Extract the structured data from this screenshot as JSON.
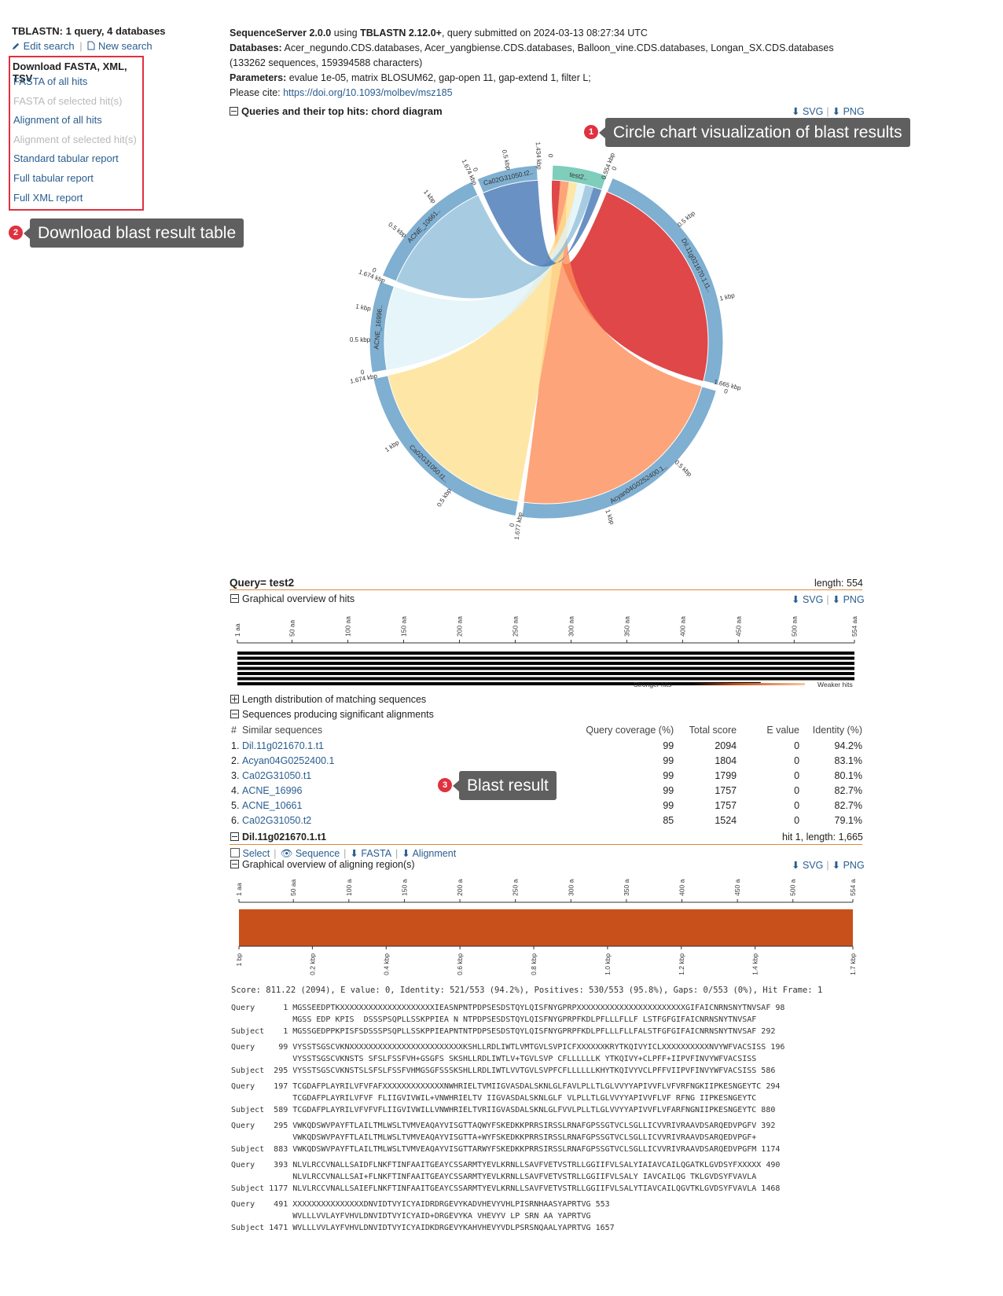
{
  "sidebar": {
    "title": "TBLASTN: 1 query, 4 databases",
    "edit_search": "Edit search",
    "new_search": "New search",
    "download_header": "Download FASTA, XML, TSV",
    "downloads": [
      {
        "label": "FASTA of all hits",
        "enabled": true
      },
      {
        "label": "FASTA of selected hit(s)",
        "enabled": false
      },
      {
        "label": "Alignment of all hits",
        "enabled": true
      },
      {
        "label": "Alignment of selected hit(s)",
        "enabled": false
      },
      {
        "label": "Standard tabular report",
        "enabled": true
      },
      {
        "label": "Full tabular report",
        "enabled": true
      },
      {
        "label": "Full XML report",
        "enabled": true
      }
    ]
  },
  "callouts": [
    {
      "num": "1",
      "text": "Circle chart visualization of blast results"
    },
    {
      "num": "2",
      "text": "Download blast result table"
    },
    {
      "num": "3",
      "text": "Blast result"
    }
  ],
  "header": {
    "app": "SequenceServer 2.0.0",
    "using": "using",
    "program": "TBLASTN 2.12.0+",
    "submitted": ", query submitted on 2024-03-13 08:27:34 UTC",
    "databases_label": "Databases:",
    "databases_value": "Acer_negundo.CDS.databases, Acer_yangbiense.CDS.databases, Balloon_vine.CDS.databases, Longan_SX.CDS.databases (133262 sequences, 159394588 characters)",
    "parameters_label": "Parameters:",
    "parameters_value": "evalue 1e-05, matrix BLOSUM62, gap-open 11, gap-extend 1, filter L;",
    "cite_label": "Please cite:",
    "cite_link": "https://doi.org/10.1093/molbev/msz185"
  },
  "downloads_svg_png": {
    "svg": "SVG",
    "png": "PNG"
  },
  "chord": {
    "title": "Queries and their top hits: chord diagram",
    "segments": [
      {
        "label": "test2..",
        "color": "#7fcdbb",
        "ticks": [
          "0",
          "0.554 kbp"
        ]
      },
      {
        "label": "Dil.11g021670.1.t1..",
        "color": "#7fafd1",
        "ticks": [
          "0",
          "0.5 kbp",
          "1 kbp",
          "1.665 kbp"
        ]
      },
      {
        "label": "Acyan04G0252400.1..",
        "color": "#7fafd1",
        "ticks": [
          "0",
          "0.5 kbp",
          "1 kbp",
          "1.677 kbp"
        ]
      },
      {
        "label": "Ca02G31050.t1..",
        "color": "#7fafd1",
        "ticks": [
          "0",
          "0.5 kbp",
          "1 kbp",
          "1.674 kbp"
        ]
      },
      {
        "label": "ACNE_16996..",
        "color": "#7fafd1",
        "ticks": [
          "0",
          "0.5 kbp",
          "1 kbp",
          "1.674 kbp"
        ]
      },
      {
        "label": "ACNE_10661..",
        "color": "#7fafd1",
        "ticks": [
          "0",
          "0.5 kbp",
          "1 kbp",
          "1.674 kbp"
        ]
      },
      {
        "label": "Ca02G31050.t2..",
        "color": "#7fafd1",
        "ticks": [
          "0",
          "0.5 kbp",
          "1.434 kbp"
        ]
      }
    ],
    "ribbon_colors": [
      "#d7191c",
      "#fc8d59",
      "#fee090",
      "#e0f3f8",
      "#91bfdb",
      "#4575b4"
    ]
  },
  "query": {
    "title": "Query= test2",
    "length": "length: 554",
    "graphical_overview": "Graphical overview of hits",
    "axis_ticks": [
      "1 aa",
      "50 aa",
      "100 aa",
      "150 aa",
      "200 aa",
      "250 aa",
      "300 aa",
      "350 aa",
      "400 aa",
      "450 aa",
      "500 aa",
      "554 aa"
    ],
    "hit_bar_extents": [
      554,
      554,
      554,
      554,
      554,
      554,
      470
    ],
    "legend_strong": "Stronger hits",
    "legend_weak": "Weaker hits",
    "length_distribution": "Length distribution of matching sequences",
    "significant": "Sequences producing significant alignments"
  },
  "hits_table": {
    "headers": [
      "#",
      "Similar sequences",
      "Query coverage (%)",
      "Total score",
      "E value",
      "Identity (%)"
    ],
    "rows": [
      {
        "n": "1.",
        "name": "Dil.11g021670.1.t1",
        "cov": "99",
        "score": "2094",
        "e": "0",
        "id": "94.2%"
      },
      {
        "n": "2.",
        "name": "Acyan04G0252400.1",
        "cov": "99",
        "score": "1804",
        "e": "0",
        "id": "83.1%"
      },
      {
        "n": "3.",
        "name": "Ca02G31050.t1",
        "cov": "99",
        "score": "1799",
        "e": "0",
        "id": "80.1%"
      },
      {
        "n": "4.",
        "name": "ACNE_16996",
        "cov": "99",
        "score": "1757",
        "e": "0",
        "id": "82.7%"
      },
      {
        "n": "5.",
        "name": "ACNE_10661",
        "cov": "99",
        "score": "1757",
        "e": "0",
        "id": "82.7%"
      },
      {
        "n": "6.",
        "name": "Ca02G31050.t2",
        "cov": "85",
        "score": "1524",
        "e": "0",
        "id": "79.1%"
      }
    ]
  },
  "hit": {
    "title": "Dil.11g021670.1.t1",
    "info": "hit 1, length: 1,665",
    "select": "Select",
    "sequence": "Sequence",
    "fasta": "FASTA",
    "alignment": "Alignment",
    "graphical_overview": "Graphical overview of aligning region(s)",
    "query_ticks": [
      "1 aa",
      "50 aa",
      "100 aa",
      "150 aa",
      "200 aa",
      "250 aa",
      "300 aa",
      "350 aa",
      "400 aa",
      "450 aa",
      "500 aa",
      "554 aa"
    ],
    "subject_ticks": [
      "1 bp",
      "0.2 kbp",
      "0.4 kbp",
      "0.6 kbp",
      "0.8 kbp",
      "1.0 kbp",
      "1.2 kbp",
      "1.4 kbp",
      "1.7 kbp"
    ],
    "region_color": "#c8501a",
    "score_line": "Score: 811.22 (2094), E value: 0, Identity: 521/553 (94.2%), Positives: 530/553 (95.8%), Gaps: 0/553 (0%), Hit Frame: 1",
    "alignment_lines": [
      "Query      1 MGSSEEDPTKXXXXXXXXXXXXXXXXXXXXIEASNPNTPDPSESDSTQYLQISFNYGPRPXXXXXXXXXXXXXXXXXXXXXXXGIFAICNRNSNYTNVSAF 98",
      "             MGSS EDP KPIS  DSSSPSQPLLSSKPPIEA N NTPDPSESDSTQYLQISFNYGPRPFKDLPFLLLFLLF LSTFGFGIFAICNRNSNYTNVSAF",
      "Subject    1 MGSSGEDPPKPISFSDSSSPSQPLLSSKPPIEAPNTNTPDPSESDSTQYLQISFNYGPRPFKDLPFLLLFLLFALSTFGFGIFAICNRNSNYTNVSAF 292",
      "Query     99 VYSSTSGSCVKNXXXXXXXXXXXXXXXXXXXXXXXXKSHLLRDLIWTLVMTGVLSVPICFXXXXXXKRYTKQIVYICLXXXXXXXXXXNVYWFVACSISS 196",
      "             VYSSTSGSCVKNSTS SFSLFSSFVH+GSGFS SKSHLLRDLIWTLV+TGVLSVP CFLLLLLLK YTKQIVY+CLPFF+IIPVFINVYWFVACSISS",
      "Subject  295 VYSSTSGSCVKNSTSLSFSLFSSFVHMGSGFSSSKSHLLRDLIWTLVVTGVLSVPFCFLLLLLLKHYTKQIVYVCLPFFVIIPVFINVYWFVACSISS 586",
      "Query    197 TCGDAFPLAYRILVFVFAFXXXXXXXXXXXXXNWHRIELTVMIIGVASDALSKNLGLFAVLPLLTLGLVVYYAPIVVFLVFVRFNGKIIPKESNGEYTC 294",
      "             TCGDAFPLAYRILVFVF FLIIGVIVWIL+VNWHRIELTV IIGVASDALSKNLGLF VLPLLTLGLVVYYAPIVVFLVF RFNG IIPKESNGEYTC",
      "Subject  589 TCGDAFPLAYRILVFVFVFLIIGVIVWILLVNWHRIELTVRIIGVASDALSKNLGLFVVLPLLTLGLVVYYAPIVVFLVFARFNGNIIPKESNGEYTC 880",
      "Query    295 VWKQDSWVPAYFTLAILTMLWSLTVMVEAQAYVISGTTAQWYFSKEDKKPRRSIRSSLRNAFGPSSGTVCLSGLLICVVRIVRAAVDSARQEDVPGFV 392",
      "             VWKQDSWVPAYFTLAILTMLWSLTVMVEAQAYVISGTTA+WYFSKEDKKPRRSIRSSLRNAFGPSSGTVCLSGLLICVVRIVRAAVDSARQEDVPGF+",
      "Subject  883 VWKQDSWVPAYFTLAILTMLWSLTVMVEAQAYVISGTTARWYFSKEDKKPRRSIRSSLRNAFGPSSGTVCLSGLLICVVRIVRAAVDSARQEDVPGFM 1174",
      "Query    393 NLVLRCCVNALLSAIDFLNKFTINFAAITGEAYCSSARMTYEVLKRNLLSAVFVETVSTRLLGGIIFVLSALYIAIAVCAILQGATKLGVDSYFXXXXX 490",
      "             NLVLRCCVNALLSAI+FLNKFTINFAAITGEAYCSSARMTYEVLKRNLLSAVFVETVSTRLLGGIIFVLSALY IAVCAILQG TKLGVDSYFVAVLA",
      "Subject 1177 NLVLRCCVNALLSAIEFLNKFTINFAAITGEAYCSSARMTYEVLKRNLLSAVFVETVSTRLLGGIIFVLSALYTIAVCAILQGVTKLGVDSYFVAVLA 1468",
      "Query    491 XXXXXXXXXXXXXXXDNVIDTVYICYAIDRDRGEVYKADVHEVYVHLPISRNHAASYAPRTVG 553",
      "             WVLLLVVLAYFVHVLDNVIDTVYICYAID+DRGEVYKA VHEVYV LP SRN AA YAPRTVG",
      "Subject 1471 WVLLLVVLAYFVHVLDNVIDTVYICYAIDKDRGEVYKAHVHEVYVDLPSRSNQAALYAPRTVG 1657"
    ]
  }
}
